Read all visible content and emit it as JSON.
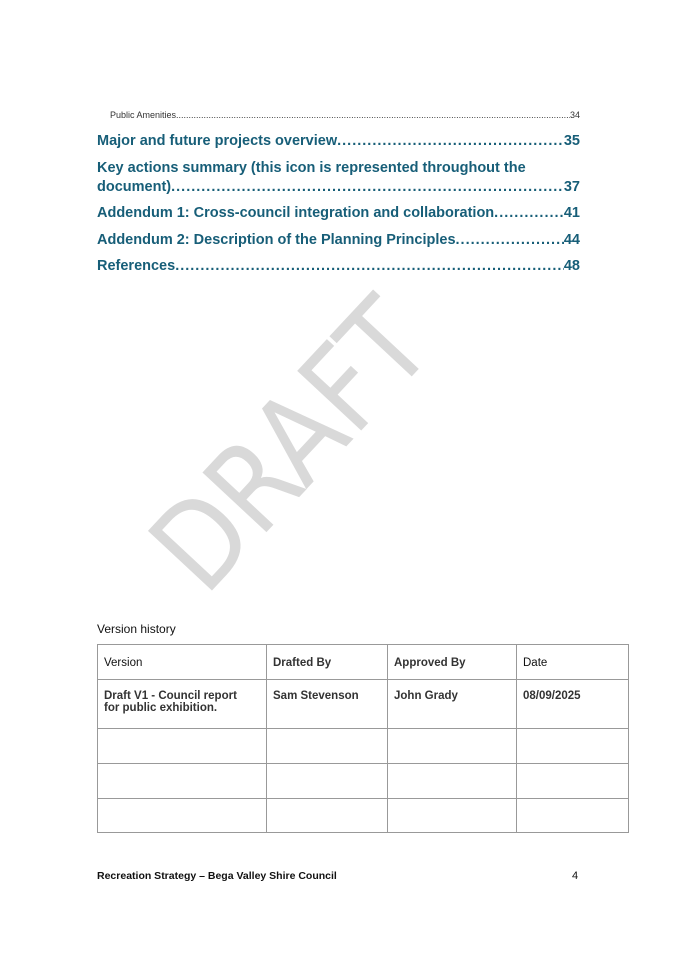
{
  "watermark": "DRAFT",
  "toc": [
    {
      "title": "Public Amenities",
      "page": "34",
      "level": 2
    },
    {
      "title": "Major and future projects overview",
      "page": "35",
      "level": 1
    },
    {
      "title_line1": "Key actions summary (this icon is represented throughout the",
      "title": "document)",
      "page": "37",
      "level": 1
    },
    {
      "title": "Addendum 1: Cross-council integration and collaboration ",
      "page": "41",
      "level": 1
    },
    {
      "title": "Addendum 2: Description of the Planning Principles",
      "page": "44",
      "level": 1
    },
    {
      "title": "References",
      "page": "48",
      "level": 1
    }
  ],
  "version_history": {
    "title": "Version history",
    "headers": [
      "Version",
      "Drafted By",
      "Approved By",
      "Date"
    ],
    "rows": [
      [
        "Draft V1 - Council report for public exhibition.",
        "Sam Stevenson",
        "John Grady",
        "08/09/2025"
      ],
      [
        "",
        "",
        "",
        ""
      ],
      [
        "",
        "",
        "",
        ""
      ],
      [
        "",
        "",
        "",
        ""
      ]
    ]
  },
  "footer": {
    "text": "Recreation Strategy – Bega Valley Shire Council",
    "page_number": "4"
  },
  "colors": {
    "toc_link": "#175e78",
    "watermark": "#d9d9d9"
  }
}
